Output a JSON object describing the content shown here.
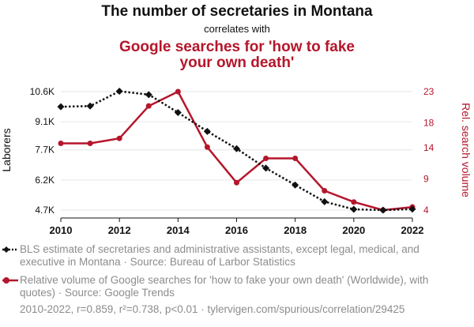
{
  "titles": {
    "line1": "The number of secretaries in Montana",
    "line2": "correlates with",
    "line3": "Google searches for 'how to fake your own death'"
  },
  "chart_data": {
    "type": "line",
    "x": [
      2010,
      2011,
      2012,
      2013,
      2014,
      2015,
      2016,
      2017,
      2018,
      2019,
      2020,
      2021,
      2022
    ],
    "xlabel": "",
    "x_ticks": [
      "2010",
      "2012",
      "2014",
      "2016",
      "2018",
      "2020",
      "2022"
    ],
    "xlim": [
      2010,
      2022
    ],
    "y_left": {
      "label": "Laborers",
      "ticks": [
        "4.7K",
        "6.2K",
        "7.7K",
        "9.1K",
        "10.6K"
      ],
      "tick_values": [
        4700,
        6200,
        7700,
        9100,
        10600
      ],
      "lim": [
        4700,
        10600
      ]
    },
    "y_right": {
      "label": "Rel. search volume",
      "ticks": [
        "4",
        "9",
        "14",
        "18",
        "23"
      ],
      "tick_values": [
        4,
        9,
        14,
        18,
        23
      ],
      "lim": [
        4,
        23
      ]
    },
    "grid": "horizontal",
    "series": [
      {
        "name": "BLS estimate of secretaries and administrative assistants, except legal, medical, and executive in Montana",
        "axis": "left",
        "color": "#111111",
        "style": "dotted",
        "marker": "diamond",
        "values": [
          9850,
          9880,
          10620,
          10450,
          9560,
          8620,
          7760,
          6790,
          5950,
          5120,
          4740,
          4700,
          4750
        ]
      },
      {
        "name": "Relative volume of Google searches for 'how to fake your own death' (Worldwide), with quotes",
        "axis": "right",
        "color": "#b5162b",
        "style": "solid",
        "marker": "circle",
        "values": [
          14.7,
          14.7,
          15.5,
          20.7,
          23.0,
          14.1,
          8.4,
          12.3,
          12.3,
          7.1,
          5.3,
          4.0,
          4.5
        ]
      }
    ]
  },
  "legend": {
    "series1_text": "BLS estimate of secretaries and administrative assistants, except legal, medical, and executive in Montana · Source: Bureau of Larbor Statistics",
    "series2_text": "Relative volume of Google searches for 'how to fake your own death' (Worldwide), with quotes) · Source: Google Trends"
  },
  "footer": "2010-2022, r=0.859, r²=0.738, p<0.01 · tylervigen.com/spurious/correlation/29425",
  "colors": {
    "title": "#111111",
    "accent": "#b5162b",
    "muted": "#8c8c8c",
    "grid": "#e6e6e6"
  }
}
